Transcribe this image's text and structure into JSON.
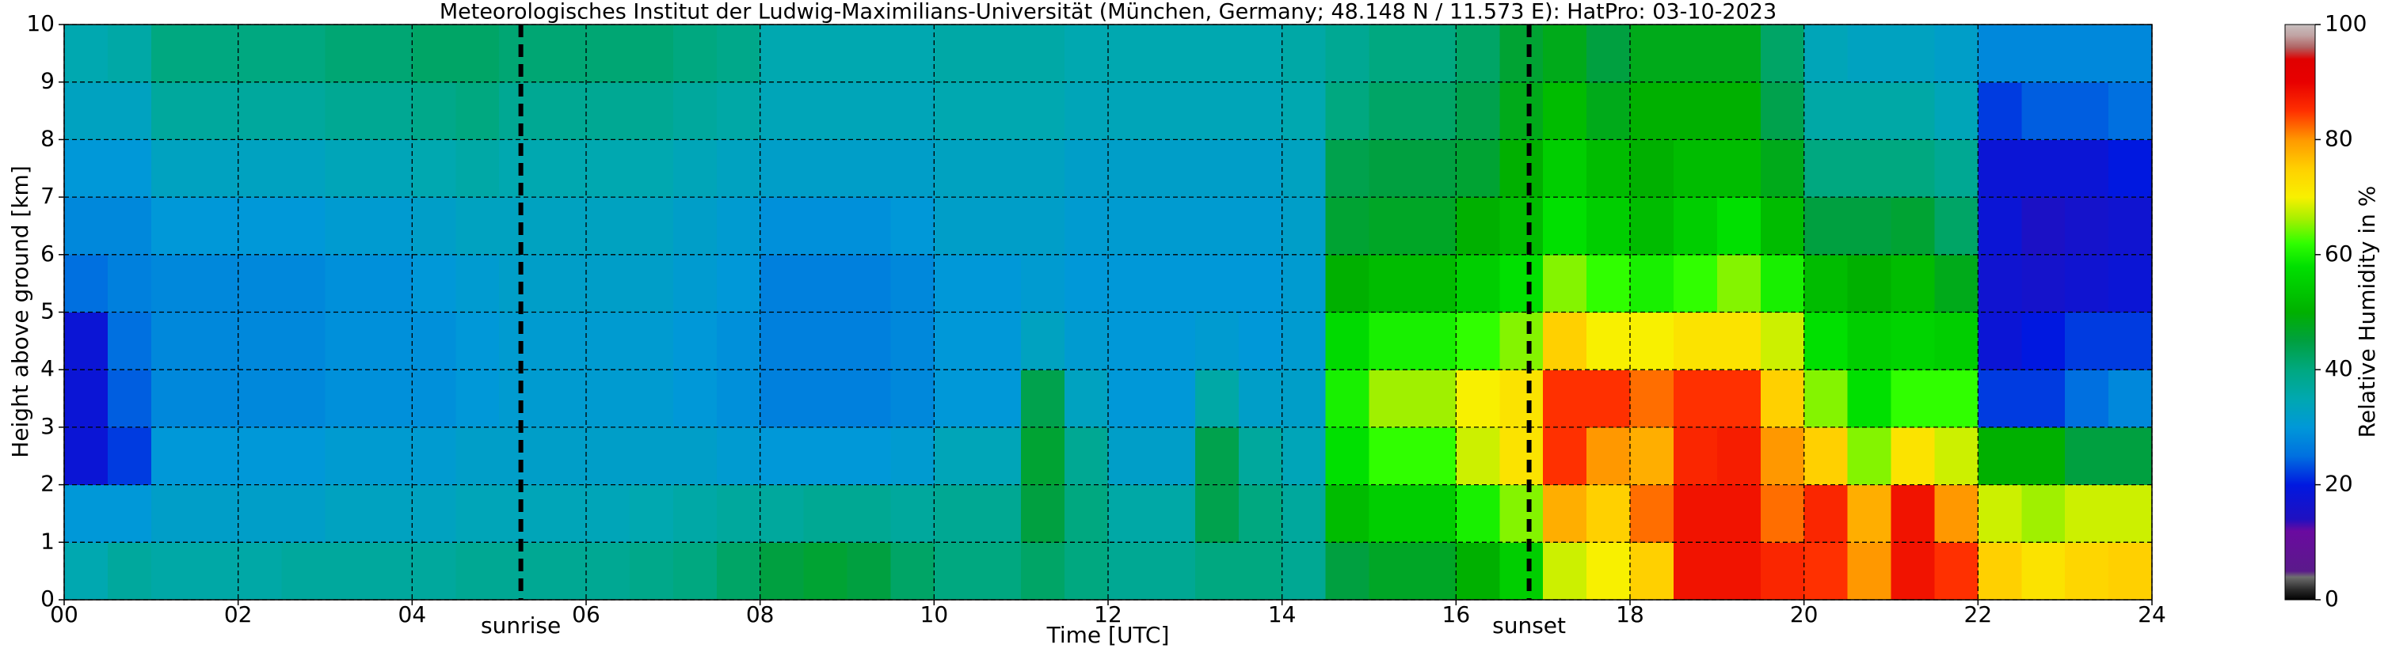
{
  "chart_data": {
    "type": "heatmap",
    "title": "Meteorologisches Institut der Ludwig-Maximilians-Universität (München, Germany; 48.148 N / 11.573 E):    HatPro: 03-10-2023",
    "xlabel": "Time [UTC]",
    "ylabel": "Height above ground [km]",
    "colorbar_label": "Relative Humidity in %",
    "xlim": [
      0,
      24
    ],
    "ylim": [
      0,
      10
    ],
    "clim": [
      0,
      100
    ],
    "xticks": [
      {
        "value": 0,
        "label": "00"
      },
      {
        "value": 2,
        "label": "02"
      },
      {
        "value": 4,
        "label": "04"
      },
      {
        "value": 6,
        "label": "06"
      },
      {
        "value": 8,
        "label": "08"
      },
      10,
      12,
      14,
      16,
      18,
      20,
      22,
      24
    ],
    "yticks": [
      0,
      1,
      2,
      3,
      4,
      5,
      6,
      7,
      8,
      9,
      10
    ],
    "cticks": [
      0,
      20,
      40,
      60,
      80,
      100
    ],
    "grid": true,
    "annotations": [
      {
        "text": "sunrise",
        "x": 5.25
      },
      {
        "text": "sunset",
        "x": 16.84
      }
    ],
    "colorscale": [
      {
        "value": 0,
        "color": "#000000"
      },
      {
        "value": 2,
        "color": "#303030"
      },
      {
        "value": 4,
        "color": "#707070"
      },
      {
        "value": 5,
        "color": "#5a1a8a"
      },
      {
        "value": 12,
        "color": "#6a0aa0"
      },
      {
        "value": 14,
        "color": "#2010c0"
      },
      {
        "value": 20,
        "color": "#0018e0"
      },
      {
        "value": 25,
        "color": "#0070e0"
      },
      {
        "value": 30,
        "color": "#0098d8"
      },
      {
        "value": 35,
        "color": "#00a8b0"
      },
      {
        "value": 40,
        "color": "#00a880"
      },
      {
        "value": 45,
        "color": "#00a040"
      },
      {
        "value": 50,
        "color": "#00b000"
      },
      {
        "value": 58,
        "color": "#00e000"
      },
      {
        "value": 62,
        "color": "#30ff00"
      },
      {
        "value": 66,
        "color": "#a0f000"
      },
      {
        "value": 70,
        "color": "#f8f000"
      },
      {
        "value": 75,
        "color": "#ffd000"
      },
      {
        "value": 80,
        "color": "#ff9800"
      },
      {
        "value": 85,
        "color": "#ff3000"
      },
      {
        "value": 90,
        "color": "#e80000"
      },
      {
        "value": 94,
        "color": "#e00000"
      },
      {
        "value": 96,
        "color": "#b06060"
      },
      {
        "value": 98,
        "color": "#c0a0a0"
      },
      {
        "value": 100,
        "color": "#c8c0c0"
      }
    ],
    "x": [
      0.25,
      0.75,
      1.25,
      1.75,
      2.25,
      2.75,
      3.25,
      3.75,
      4.25,
      4.75,
      5.25,
      5.75,
      6.25,
      6.75,
      7.25,
      7.75,
      8.25,
      8.75,
      9.25,
      9.75,
      10.25,
      10.75,
      11.25,
      11.75,
      12.25,
      12.75,
      13.25,
      13.75,
      14.25,
      14.75,
      15.25,
      15.75,
      16.25,
      16.75,
      17.25,
      17.75,
      18.25,
      18.75,
      19.25,
      19.75,
      20.25,
      20.75,
      21.25,
      21.75,
      22.25,
      22.75,
      23.25,
      23.75
    ],
    "y": [
      0.5,
      1.5,
      2.5,
      3.5,
      4.5,
      5.5,
      6.5,
      7.5,
      8.5,
      9.5
    ],
    "z": [
      [
        35,
        37,
        36,
        36,
        36,
        37,
        37,
        37,
        37,
        38,
        38,
        38,
        38,
        39,
        40,
        42,
        45,
        46,
        45,
        42,
        40,
        40,
        42,
        40,
        38,
        38,
        40,
        40,
        38,
        45,
        47,
        47,
        50,
        55,
        68,
        70,
        75,
        88,
        88,
        86,
        85,
        80,
        88,
        85,
        75,
        72,
        74,
        75
      ],
      [
        30,
        30,
        32,
        32,
        32,
        32,
        33,
        33,
        33,
        34,
        34,
        34,
        34,
        35,
        36,
        37,
        37,
        38,
        38,
        37,
        38,
        38,
        45,
        40,
        36,
        36,
        44,
        40,
        37,
        52,
        55,
        55,
        60,
        65,
        78,
        75,
        82,
        88,
        88,
        82,
        86,
        78,
        88,
        80,
        68,
        66,
        68,
        68
      ],
      [
        18,
        22,
        30,
        30,
        30,
        30,
        31,
        31,
        31,
        32,
        32,
        32,
        32,
        32,
        32,
        31,
        30,
        30,
        30,
        31,
        34,
        34,
        46,
        38,
        32,
        32,
        44,
        37,
        34,
        58,
        62,
        62,
        68,
        72,
        85,
        80,
        78,
        86,
        87,
        80,
        75,
        65,
        72,
        68,
        50,
        50,
        45,
        45
      ],
      [
        18,
        24,
        28,
        28,
        28,
        28,
        29,
        29,
        29,
        30,
        31,
        31,
        31,
        31,
        30,
        29,
        27,
        27,
        27,
        28,
        30,
        30,
        44,
        33,
        30,
        30,
        36,
        32,
        32,
        60,
        66,
        66,
        70,
        72,
        85,
        85,
        82,
        85,
        85,
        75,
        65,
        58,
        62,
        62,
        22,
        22,
        25,
        28
      ],
      [
        18,
        25,
        28,
        28,
        28,
        28,
        29,
        29,
        29,
        30,
        31,
        31,
        31,
        31,
        30,
        29,
        27,
        27,
        27,
        28,
        30,
        30,
        33,
        31,
        30,
        30,
        31,
        30,
        31,
        57,
        60,
        60,
        62,
        65,
        75,
        70,
        70,
        72,
        72,
        68,
        58,
        55,
        56,
        55,
        18,
        20,
        22,
        22
      ],
      [
        25,
        27,
        28,
        28,
        28,
        28,
        29,
        29,
        30,
        31,
        32,
        32,
        32,
        32,
        31,
        30,
        27,
        27,
        27,
        28,
        30,
        30,
        31,
        30,
        30,
        30,
        30,
        30,
        31,
        50,
        52,
        52,
        55,
        58,
        65,
        62,
        60,
        62,
        65,
        60,
        52,
        50,
        52,
        48,
        17,
        16,
        17,
        18
      ],
      [
        28,
        28,
        30,
        30,
        30,
        30,
        31,
        31,
        32,
        33,
        33,
        33,
        33,
        33,
        32,
        31,
        29,
        29,
        29,
        30,
        32,
        32,
        32,
        31,
        31,
        31,
        31,
        31,
        32,
        46,
        47,
        47,
        50,
        52,
        58,
        55,
        52,
        55,
        58,
        52,
        45,
        45,
        46,
        42,
        18,
        15,
        16,
        17
      ],
      [
        30,
        30,
        33,
        33,
        33,
        33,
        34,
        34,
        35,
        36,
        35,
        35,
        35,
        35,
        34,
        33,
        32,
        32,
        32,
        32,
        33,
        33,
        33,
        32,
        32,
        32,
        32,
        32,
        33,
        44,
        45,
        45,
        46,
        50,
        55,
        52,
        50,
        52,
        52,
        48,
        40,
        40,
        40,
        38,
        18,
        18,
        18,
        20
      ],
      [
        33,
        33,
        37,
        37,
        37,
        37,
        38,
        38,
        39,
        40,
        38,
        38,
        38,
        38,
        37,
        36,
        34,
        34,
        34,
        34,
        35,
        35,
        35,
        34,
        34,
        34,
        34,
        34,
        35,
        40,
        42,
        42,
        44,
        48,
        52,
        48,
        50,
        50,
        50,
        44,
        36,
        36,
        36,
        34,
        22,
        24,
        24,
        25
      ],
      [
        35,
        36,
        40,
        40,
        40,
        40,
        41,
        41,
        42,
        42,
        41,
        41,
        41,
        41,
        40,
        39,
        35,
        35,
        35,
        35,
        36,
        36,
        36,
        35,
        35,
        35,
        35,
        35,
        36,
        38,
        40,
        40,
        42,
        46,
        48,
        45,
        48,
        48,
        48,
        42,
        34,
        33,
        33,
        32,
        28,
        28,
        28,
        28
      ]
    ]
  }
}
